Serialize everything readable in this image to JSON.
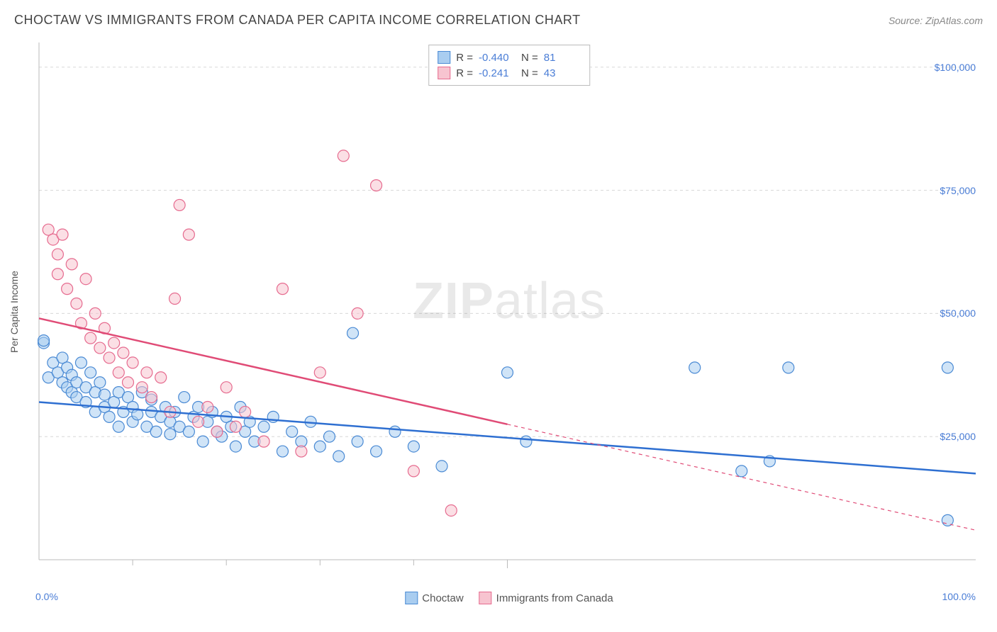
{
  "header": {
    "title": "CHOCTAW VS IMMIGRANTS FROM CANADA PER CAPITA INCOME CORRELATION CHART",
    "source": "Source: ZipAtlas.com"
  },
  "watermark": {
    "bold": "ZIP",
    "rest": "atlas"
  },
  "chart": {
    "type": "scatter",
    "ylabel": "Per Capita Income",
    "background_color": "#ffffff",
    "grid_color": "#d8d8d8",
    "axis_color": "#bbbbbb",
    "xlim": [
      0,
      100
    ],
    "ylim": [
      0,
      105000
    ],
    "ytick_step": 25000,
    "yticks": [
      {
        "value": 25000,
        "label": "$25,000"
      },
      {
        "value": 50000,
        "label": "$50,000"
      },
      {
        "value": 75000,
        "label": "$75,000"
      },
      {
        "value": 100000,
        "label": "$100,000"
      }
    ],
    "xticks_minor": [
      10,
      20,
      30,
      40,
      50
    ],
    "xticks": [
      {
        "value": 0,
        "label": "0.0%"
      },
      {
        "value": 100,
        "label": "100.0%"
      }
    ],
    "legend_top": [
      {
        "swatch_fill": "#a9cdf0",
        "swatch_border": "#4a8ad4",
        "r_label": "R =",
        "r": "-0.440",
        "n_label": "N =",
        "n": "81"
      },
      {
        "swatch_fill": "#f7c4d0",
        "swatch_border": "#e66b8f",
        "r_label": "R =",
        "r": "-0.241",
        "n_label": "N =",
        "n": "43"
      }
    ],
    "legend_bottom": [
      {
        "swatch_fill": "#a9cdf0",
        "swatch_border": "#4a8ad4",
        "label": "Choctaw"
      },
      {
        "swatch_fill": "#f7c4d0",
        "swatch_border": "#e66b8f",
        "label": "Immigrants from Canada"
      }
    ],
    "series": [
      {
        "name": "choctaw",
        "marker_fill": "#a9cdf0",
        "marker_stroke": "#4a8ad4",
        "marker_fill_opacity": 0.55,
        "marker_r": 8,
        "trend": {
          "color": "#2e6fd1",
          "width": 2.5,
          "x1": 0,
          "y1": 32000,
          "x2": 100,
          "y2": 17500,
          "solid_until": 100
        },
        "points": [
          [
            0.5,
            44000
          ],
          [
            0.5,
            44500
          ],
          [
            1,
            37000
          ],
          [
            1.5,
            40000
          ],
          [
            2,
            38000
          ],
          [
            2.5,
            36000
          ],
          [
            2.5,
            41000
          ],
          [
            3,
            35000
          ],
          [
            3,
            39000
          ],
          [
            3.5,
            34000
          ],
          [
            3.5,
            37500
          ],
          [
            4,
            36000
          ],
          [
            4,
            33000
          ],
          [
            4.5,
            40000
          ],
          [
            5,
            32000
          ],
          [
            5,
            35000
          ],
          [
            5.5,
            38000
          ],
          [
            6,
            34000
          ],
          [
            6,
            30000
          ],
          [
            6.5,
            36000
          ],
          [
            7,
            31000
          ],
          [
            7,
            33500
          ],
          [
            7.5,
            29000
          ],
          [
            8,
            32000
          ],
          [
            8.5,
            27000
          ],
          [
            8.5,
            34000
          ],
          [
            9,
            30000
          ],
          [
            9.5,
            33000
          ],
          [
            10,
            28000
          ],
          [
            10,
            31000
          ],
          [
            10.5,
            29500
          ],
          [
            11,
            34000
          ],
          [
            11.5,
            27000
          ],
          [
            12,
            30000
          ],
          [
            12,
            32500
          ],
          [
            12.5,
            26000
          ],
          [
            13,
            29000
          ],
          [
            13.5,
            31000
          ],
          [
            14,
            28000
          ],
          [
            14,
            25500
          ],
          [
            14.5,
            30000
          ],
          [
            15,
            27000
          ],
          [
            15.5,
            33000
          ],
          [
            16,
            26000
          ],
          [
            16.5,
            29000
          ],
          [
            17,
            31000
          ],
          [
            17.5,
            24000
          ],
          [
            18,
            28000
          ],
          [
            18.5,
            30000
          ],
          [
            19,
            26000
          ],
          [
            19.5,
            25000
          ],
          [
            20,
            29000
          ],
          [
            20.5,
            27000
          ],
          [
            21,
            23000
          ],
          [
            21.5,
            31000
          ],
          [
            22,
            26000
          ],
          [
            22.5,
            28000
          ],
          [
            23,
            24000
          ],
          [
            24,
            27000
          ],
          [
            25,
            29000
          ],
          [
            26,
            22000
          ],
          [
            27,
            26000
          ],
          [
            28,
            24000
          ],
          [
            29,
            28000
          ],
          [
            30,
            23000
          ],
          [
            31,
            25000
          ],
          [
            32,
            21000
          ],
          [
            33.5,
            46000
          ],
          [
            34,
            24000
          ],
          [
            36,
            22000
          ],
          [
            38,
            26000
          ],
          [
            40,
            23000
          ],
          [
            43,
            19000
          ],
          [
            50,
            38000
          ],
          [
            52,
            24000
          ],
          [
            70,
            39000
          ],
          [
            75,
            18000
          ],
          [
            78,
            20000
          ],
          [
            80,
            39000
          ],
          [
            97,
            8000
          ],
          [
            97,
            39000
          ]
        ]
      },
      {
        "name": "immigrants_from_canada",
        "marker_fill": "#f7c4d0",
        "marker_stroke": "#e66b8f",
        "marker_fill_opacity": 0.55,
        "marker_r": 8,
        "trend": {
          "color": "#e04b76",
          "width": 2.5,
          "x1": 0,
          "y1": 49000,
          "x2": 100,
          "y2": 6000,
          "solid_until": 50
        },
        "points": [
          [
            1,
            67000
          ],
          [
            1.5,
            65000
          ],
          [
            2,
            62000
          ],
          [
            2,
            58000
          ],
          [
            2.5,
            66000
          ],
          [
            3,
            55000
          ],
          [
            3.5,
            60000
          ],
          [
            4,
            52000
          ],
          [
            4.5,
            48000
          ],
          [
            5,
            57000
          ],
          [
            5.5,
            45000
          ],
          [
            6,
            50000
          ],
          [
            6.5,
            43000
          ],
          [
            7,
            47000
          ],
          [
            7.5,
            41000
          ],
          [
            8,
            44000
          ],
          [
            8.5,
            38000
          ],
          [
            9,
            42000
          ],
          [
            9.5,
            36000
          ],
          [
            10,
            40000
          ],
          [
            11,
            35000
          ],
          [
            11.5,
            38000
          ],
          [
            12,
            33000
          ],
          [
            13,
            37000
          ],
          [
            14,
            30000
          ],
          [
            14.5,
            53000
          ],
          [
            15,
            72000
          ],
          [
            16,
            66000
          ],
          [
            17,
            28000
          ],
          [
            18,
            31000
          ],
          [
            19,
            26000
          ],
          [
            20,
            35000
          ],
          [
            21,
            27000
          ],
          [
            22,
            30000
          ],
          [
            24,
            24000
          ],
          [
            26,
            55000
          ],
          [
            28,
            22000
          ],
          [
            30,
            38000
          ],
          [
            32.5,
            82000
          ],
          [
            34,
            50000
          ],
          [
            36,
            76000
          ],
          [
            40,
            18000
          ],
          [
            44,
            10000
          ]
        ]
      }
    ]
  }
}
